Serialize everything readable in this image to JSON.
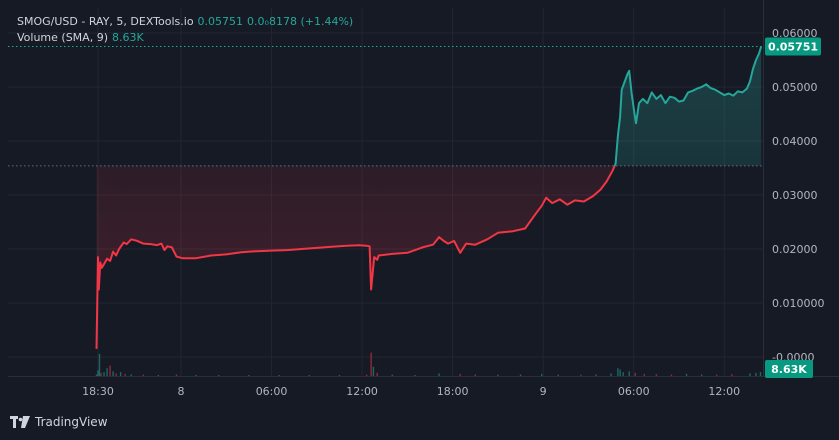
{
  "legend": {
    "symbol_line": "SMOG/USD - RAY, 5, DEXTools.io",
    "last_value": "0.05751",
    "change_text": "0.0₀8178 (+1.44%)",
    "volume_title": "Volume (SMA, 9)",
    "volume_value": "8.63K"
  },
  "footer": {
    "brand": "TradingView",
    "logo_icon": "tradingview-logo-icon"
  },
  "colors": {
    "background": "#161a25",
    "up": "#26a69a",
    "down": "#f23645",
    "price_badge": "#089981",
    "grid": "#232632"
  },
  "chart_data": {
    "type": "line",
    "title": "",
    "xlabel": "",
    "ylabel": "",
    "ylim": [
      -0.002,
      0.062
    ],
    "y_ticks": [
      "0.06000",
      "0.05000",
      "0.04000",
      "0.03000",
      "0.02000",
      "0.010000",
      "-0.0000"
    ],
    "y_tick_values": [
      0.06,
      0.05,
      0.04,
      0.03,
      0.02,
      0.01,
      0.0
    ],
    "x_tick_labels": [
      "18:30",
      "8",
      "06:00",
      "12:00",
      "18:00",
      "9",
      "06:00",
      "12:00"
    ],
    "x_tick_hours": [
      0,
      5.5,
      11.5,
      17.5,
      23.5,
      29.5,
      35.5,
      41.5
    ],
    "x_unit": "hours since first tick (18:30)",
    "baseline_value": 0.0354,
    "last_price": 0.05751,
    "last_price_label": "0.05751",
    "volume_label": "8.63K",
    "grid": true,
    "series": [
      {
        "name": "SMOG/USD",
        "points": [
          [
            -0.1,
            0.0015
          ],
          [
            0.0,
            0.0185
          ],
          [
            0.05,
            0.0125
          ],
          [
            0.15,
            0.0175
          ],
          [
            0.25,
            0.0165
          ],
          [
            0.4,
            0.0172
          ],
          [
            0.6,
            0.0182
          ],
          [
            0.8,
            0.0178
          ],
          [
            1.0,
            0.0195
          ],
          [
            1.2,
            0.0188
          ],
          [
            1.4,
            0.02
          ],
          [
            1.7,
            0.0212
          ],
          [
            1.9,
            0.0209
          ],
          [
            2.2,
            0.0218
          ],
          [
            2.6,
            0.0215
          ],
          [
            3.0,
            0.021
          ],
          [
            3.5,
            0.0209
          ],
          [
            3.9,
            0.0207
          ],
          [
            4.2,
            0.021
          ],
          [
            4.4,
            0.0198
          ],
          [
            4.6,
            0.0205
          ],
          [
            4.9,
            0.0203
          ],
          [
            5.2,
            0.0186
          ],
          [
            5.6,
            0.0183
          ],
          [
            6.5,
            0.0183
          ],
          [
            7.5,
            0.0188
          ],
          [
            8.5,
            0.019
          ],
          [
            9.5,
            0.0194
          ],
          [
            10.5,
            0.0196
          ],
          [
            11.5,
            0.0197
          ],
          [
            12.5,
            0.0198
          ],
          [
            13.5,
            0.02
          ],
          [
            14.5,
            0.0202
          ],
          [
            15.5,
            0.0204
          ],
          [
            16.5,
            0.0206
          ],
          [
            17.3,
            0.0207
          ],
          [
            17.8,
            0.0206
          ],
          [
            18.0,
            0.0205
          ],
          [
            18.1,
            0.0125
          ],
          [
            18.3,
            0.0185
          ],
          [
            18.5,
            0.018
          ],
          [
            18.6,
            0.0188
          ],
          [
            19.5,
            0.0191
          ],
          [
            20.5,
            0.0193
          ],
          [
            21.5,
            0.0203
          ],
          [
            22.2,
            0.0208
          ],
          [
            22.6,
            0.0222
          ],
          [
            22.9,
            0.0215
          ],
          [
            23.2,
            0.021
          ],
          [
            23.6,
            0.0215
          ],
          [
            24.0,
            0.0193
          ],
          [
            24.4,
            0.021
          ],
          [
            25.0,
            0.0208
          ],
          [
            25.8,
            0.0218
          ],
          [
            26.5,
            0.023
          ],
          [
            27.5,
            0.0233
          ],
          [
            28.3,
            0.0238
          ],
          [
            29.0,
            0.0265
          ],
          [
            29.4,
            0.028
          ],
          [
            29.7,
            0.0295
          ],
          [
            30.1,
            0.0285
          ],
          [
            30.6,
            0.0292
          ],
          [
            31.1,
            0.0282
          ],
          [
            31.6,
            0.029
          ],
          [
            32.2,
            0.0288
          ],
          [
            32.8,
            0.0298
          ],
          [
            33.3,
            0.031
          ],
          [
            33.7,
            0.0325
          ],
          [
            34.1,
            0.0345
          ],
          [
            34.3,
            0.0358
          ],
          [
            34.45,
            0.041
          ],
          [
            34.6,
            0.0445
          ],
          [
            34.7,
            0.0495
          ],
          [
            34.9,
            0.051
          ],
          [
            35.1,
            0.0525
          ],
          [
            35.2,
            0.053
          ],
          [
            35.35,
            0.049
          ],
          [
            35.55,
            0.045
          ],
          [
            35.65,
            0.0433
          ],
          [
            35.85,
            0.047
          ],
          [
            36.1,
            0.0478
          ],
          [
            36.4,
            0.047
          ],
          [
            36.7,
            0.049
          ],
          [
            37.0,
            0.0478
          ],
          [
            37.3,
            0.0485
          ],
          [
            37.6,
            0.047
          ],
          [
            37.9,
            0.0482
          ],
          [
            38.2,
            0.048
          ],
          [
            38.5,
            0.0473
          ],
          [
            38.8,
            0.0475
          ],
          [
            39.1,
            0.049
          ],
          [
            39.4,
            0.0493
          ],
          [
            39.7,
            0.0497
          ],
          [
            40.0,
            0.05
          ],
          [
            40.3,
            0.0505
          ],
          [
            40.6,
            0.0498
          ],
          [
            40.9,
            0.0495
          ],
          [
            41.2,
            0.049
          ],
          [
            41.5,
            0.0485
          ],
          [
            41.8,
            0.0488
          ],
          [
            42.1,
            0.0484
          ],
          [
            42.4,
            0.0492
          ],
          [
            42.7,
            0.049
          ],
          [
            43.0,
            0.0497
          ],
          [
            43.2,
            0.051
          ],
          [
            43.4,
            0.0533
          ],
          [
            43.6,
            0.055
          ],
          [
            43.8,
            0.0562
          ],
          [
            43.95,
            0.0575
          ]
        ]
      }
    ],
    "volume_bars": [
      [
        -0.1,
        0.06
      ],
      [
        0.0,
        0.22
      ],
      [
        0.1,
        0.85
      ],
      [
        0.2,
        0.12
      ],
      [
        0.4,
        0.15
      ],
      [
        0.6,
        0.3
      ],
      [
        0.8,
        0.4
      ],
      [
        1.0,
        0.18
      ],
      [
        1.2,
        0.1
      ],
      [
        1.5,
        0.15
      ],
      [
        1.8,
        0.08
      ],
      [
        2.2,
        0.06
      ],
      [
        3.0,
        0.05
      ],
      [
        4.0,
        0.04
      ],
      [
        5.2,
        0.06
      ],
      [
        6.5,
        0.04
      ],
      [
        8.0,
        0.03
      ],
      [
        10.0,
        0.03
      ],
      [
        12.0,
        0.02
      ],
      [
        14.0,
        0.02
      ],
      [
        16.0,
        0.02
      ],
      [
        17.8,
        0.05
      ],
      [
        18.1,
        0.9
      ],
      [
        18.25,
        0.35
      ],
      [
        18.5,
        0.12
      ],
      [
        19.5,
        0.05
      ],
      [
        21.0,
        0.04
      ],
      [
        22.6,
        0.1
      ],
      [
        24.0,
        0.08
      ],
      [
        25.0,
        0.06
      ],
      [
        26.5,
        0.05
      ],
      [
        28.0,
        0.06
      ],
      [
        29.4,
        0.08
      ],
      [
        30.5,
        0.05
      ],
      [
        32.0,
        0.05
      ],
      [
        33.0,
        0.06
      ],
      [
        34.0,
        0.1
      ],
      [
        34.45,
        0.3
      ],
      [
        34.6,
        0.25
      ],
      [
        34.8,
        0.15
      ],
      [
        35.2,
        0.18
      ],
      [
        35.6,
        0.12
      ],
      [
        36.2,
        0.08
      ],
      [
        37.0,
        0.07
      ],
      [
        38.0,
        0.06
      ],
      [
        39.0,
        0.08
      ],
      [
        40.0,
        0.06
      ],
      [
        41.0,
        0.05
      ],
      [
        42.0,
        0.07
      ],
      [
        43.2,
        0.1
      ],
      [
        43.6,
        0.12
      ],
      [
        43.9,
        0.15
      ]
    ]
  }
}
